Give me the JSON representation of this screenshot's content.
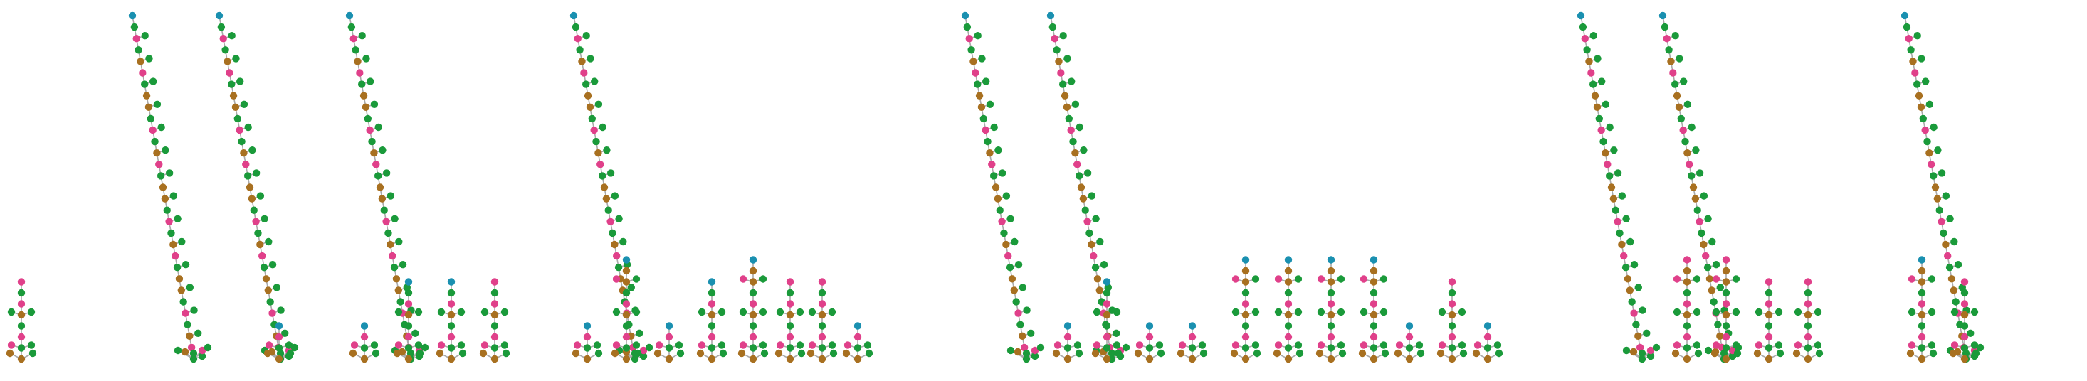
{
  "colors": {
    "link": "#a9a9a9",
    "magenta": "#e0408a",
    "green": "#1a9a3a",
    "brown": "#a87020",
    "teal": "#1a90b0",
    "peach": "#f0a070"
  },
  "trees": [
    {
      "kind": "small",
      "depth": 8,
      "tip": "magenta"
    },
    {
      "kind": "tall",
      "depth": 30
    },
    {
      "kind": "tall",
      "depth": 30
    },
    {
      "kind": "small",
      "depth": 4,
      "tip": "teal"
    },
    {
      "kind": "tall",
      "depth": 30
    },
    {
      "kind": "small",
      "depth": 4,
      "tip": "teal"
    },
    {
      "kind": "small",
      "depth": 8,
      "tip": "teal"
    },
    {
      "kind": "small",
      "depth": 8,
      "tip": "teal"
    },
    {
      "kind": "small",
      "depth": 8,
      "tip": "magenta"
    },
    {
      "kind": "tall",
      "depth": 30
    },
    {
      "kind": "small",
      "depth": 4,
      "tip": "teal"
    },
    {
      "kind": "small",
      "depth": 10,
      "tip": "teal"
    },
    {
      "kind": "small",
      "depth": 4,
      "tip": "teal"
    },
    {
      "kind": "small",
      "depth": 8,
      "tip": "teal"
    },
    {
      "kind": "small",
      "depth": 10,
      "tip": "teal"
    },
    {
      "kind": "small",
      "depth": 8,
      "tip": "magenta"
    },
    {
      "kind": "small",
      "depth": 8,
      "tip": "magenta"
    },
    {
      "kind": "small",
      "depth": 4,
      "tip": "teal"
    },
    {
      "kind": "tall",
      "depth": 30
    },
    {
      "kind": "tall",
      "depth": 30
    },
    {
      "kind": "small",
      "depth": 4,
      "tip": "teal"
    },
    {
      "kind": "small",
      "depth": 8,
      "tip": "teal"
    },
    {
      "kind": "small",
      "depth": 4,
      "tip": "teal"
    },
    {
      "kind": "small",
      "depth": 4,
      "tip": "teal"
    },
    {
      "kind": "small",
      "depth": 10,
      "tip": "teal"
    },
    {
      "kind": "small",
      "depth": 10,
      "tip": "teal"
    },
    {
      "kind": "small",
      "depth": 10,
      "tip": "teal"
    },
    {
      "kind": "small",
      "depth": 10,
      "tip": "teal"
    },
    {
      "kind": "small",
      "depth": 4,
      "tip": "teal"
    },
    {
      "kind": "small",
      "depth": 8,
      "tip": "magenta"
    },
    {
      "kind": "small",
      "depth": 4,
      "tip": "teal"
    },
    {
      "kind": "tall",
      "depth": 30
    },
    {
      "kind": "tall",
      "depth": 30
    },
    {
      "kind": "small",
      "depth": 10,
      "tip": "magenta"
    },
    {
      "kind": "small",
      "depth": 10,
      "tip": "magenta"
    },
    {
      "kind": "small",
      "depth": 8,
      "tip": "magenta"
    },
    {
      "kind": "small",
      "depth": 8,
      "tip": "magenta"
    },
    {
      "kind": "tall",
      "depth": 30
    },
    {
      "kind": "small",
      "depth": 10,
      "tip": "teal"
    },
    {
      "kind": "small",
      "depth": 8,
      "tip": "magenta"
    }
  ]
}
